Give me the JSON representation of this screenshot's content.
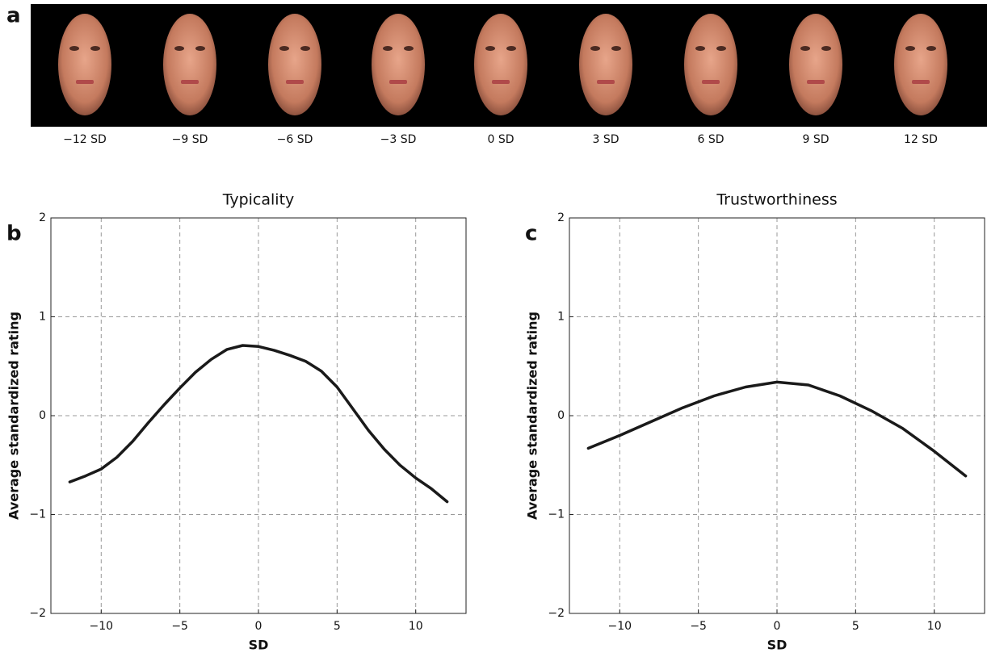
{
  "panel_a": {
    "label": "a",
    "faces": [
      "−12 SD",
      "−9 SD",
      "−6 SD",
      "−3 SD",
      "0 SD",
      "3 SD",
      "6 SD",
      "9 SD",
      "12 SD"
    ]
  },
  "chart_data": [
    {
      "type": "line",
      "panel_label": "b",
      "title": "Typicality",
      "x_label": "SD",
      "y_label": "Average standardized rating",
      "x": [
        -12,
        -11,
        -10,
        -9,
        -8,
        -7,
        -6,
        -5,
        -4,
        -3,
        -2,
        -1,
        0,
        1,
        2,
        3,
        4,
        5,
        6,
        7,
        8,
        9,
        10,
        11,
        12
      ],
      "series": [
        {
          "color": "#1a1a1a",
          "values": [
            -0.67,
            -0.61,
            -0.54,
            -0.42,
            -0.26,
            -0.07,
            0.11,
            0.28,
            0.44,
            0.57,
            0.67,
            0.71,
            0.7,
            0.66,
            0.61,
            0.55,
            0.45,
            0.29,
            0.07,
            -0.15,
            -0.34,
            -0.5,
            -0.63,
            -0.74,
            -0.87
          ]
        }
      ],
      "xlim": [
        -13.2,
        13.2
      ],
      "ylim": [
        -2,
        2
      ],
      "xticks": [
        {
          "value": -10,
          "label": "−10"
        },
        {
          "value": -5,
          "label": "−5"
        },
        0,
        5,
        10
      ],
      "yticks": [
        {
          "value": -2,
          "label": "−2"
        },
        {
          "value": -1,
          "label": "−1"
        },
        0,
        1,
        2
      ],
      "grid": true
    },
    {
      "type": "line",
      "panel_label": "c",
      "title": "Trustworthiness",
      "x_label": "SD",
      "y_label": "Average standardized rating",
      "x": [
        -12,
        -10,
        -8,
        -6,
        -4,
        -2,
        0,
        2,
        4,
        6,
        8,
        10,
        12
      ],
      "series": [
        {
          "color": "#1a1a1a",
          "values": [
            -0.33,
            -0.2,
            -0.06,
            0.08,
            0.2,
            0.29,
            0.34,
            0.31,
            0.2,
            0.05,
            -0.13,
            -0.36,
            -0.61
          ]
        }
      ],
      "xlim": [
        -13.2,
        13.2
      ],
      "ylim": [
        -2,
        2
      ],
      "xticks": [
        {
          "value": -10,
          "label": "−10"
        },
        {
          "value": -5,
          "label": "−5"
        },
        0,
        5,
        10
      ],
      "yticks": [
        {
          "value": -2,
          "label": "−2"
        },
        {
          "value": -1,
          "label": "−1"
        },
        0,
        1,
        2
      ],
      "grid": true
    }
  ]
}
